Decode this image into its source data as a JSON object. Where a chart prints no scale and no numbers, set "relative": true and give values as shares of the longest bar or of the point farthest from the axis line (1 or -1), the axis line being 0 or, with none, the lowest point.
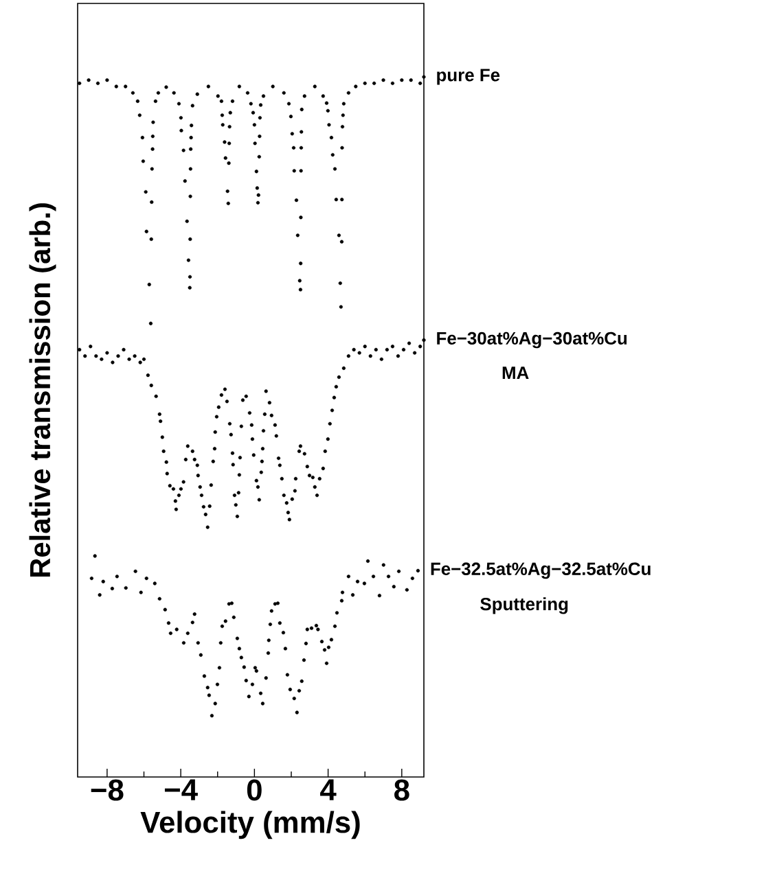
{
  "chart_data": {
    "type": "scatter",
    "relative": true,
    "xlabel": "Velocity  (mm/s)",
    "ylabel": "Relative transmission  (arb.)",
    "xlim": [
      -9.6,
      9.2
    ],
    "xticks": [
      {
        "value": -8,
        "label": "−8"
      },
      {
        "value": -4,
        "label": "−4"
      },
      0,
      4,
      8
    ],
    "annotations": [
      "MA",
      "Sputtering"
    ],
    "series": [
      {
        "name": "pure Fe",
        "color": "#000000",
        "x": [
          -9.5,
          -9.0,
          -8.5,
          -8.0,
          -7.5,
          -7.0,
          -6.6,
          -6.34,
          -6.23,
          -6.08,
          -6.04,
          -5.9,
          -5.86,
          -5.71,
          -5.63,
          -5.6,
          -5.58,
          -5.56,
          -5.53,
          -5.52,
          -5.5,
          -5.37,
          -5.22,
          -4.79,
          -4.37,
          -4.1,
          -3.99,
          -3.97,
          -3.85,
          -3.77,
          -3.66,
          -3.58,
          -3.51,
          -3.5,
          -3.49,
          -3.48,
          -3.47,
          -3.46,
          -3.44,
          -3.42,
          -3.36,
          -3.1,
          -2.5,
          -1.98,
          -1.79,
          -1.75,
          -1.72,
          -1.62,
          -1.57,
          -1.46,
          -1.42,
          -1.39,
          -1.37,
          -1.35,
          -1.31,
          -1.19,
          -0.82,
          -0.37,
          -0.19,
          -0.07,
          0.0,
          0.03,
          0.11,
          0.15,
          0.19,
          0.22,
          0.26,
          0.28,
          0.3,
          0.34,
          0.49,
          1.0,
          1.6,
          1.87,
          1.98,
          2.05,
          2.13,
          2.16,
          2.28,
          2.35,
          2.46,
          2.5,
          2.51,
          2.52,
          2.53,
          2.54,
          2.55,
          2.57,
          2.72,
          3.28,
          3.73,
          3.92,
          3.99,
          4.05,
          4.18,
          4.25,
          4.37,
          4.44,
          4.59,
          4.66,
          4.7,
          4.74,
          4.75,
          4.76,
          4.78,
          4.81,
          4.85,
          5.11,
          5.5,
          6.0,
          6.5,
          7.0,
          7.5,
          8.0,
          8.5,
          9.0,
          9.2
        ],
        "values": [
          0.99,
          0.995,
          0.99,
          0.995,
          0.985,
          0.985,
          0.975,
          0.962,
          0.94,
          0.905,
          0.868,
          0.82,
          0.758,
          0.675,
          0.614,
          0.746,
          0.804,
          0.856,
          0.887,
          0.907,
          0.929,
          0.962,
          0.975,
          0.984,
          0.975,
          0.958,
          0.936,
          0.916,
          0.885,
          0.837,
          0.774,
          0.713,
          0.67,
          0.687,
          0.746,
          0.813,
          0.856,
          0.887,
          0.905,
          0.924,
          0.955,
          0.973,
          0.985,
          0.97,
          0.962,
          0.94,
          0.925,
          0.898,
          0.873,
          0.821,
          0.802,
          0.865,
          0.896,
          0.922,
          0.944,
          0.962,
          0.985,
          0.975,
          0.958,
          0.944,
          0.925,
          0.896,
          0.852,
          0.826,
          0.803,
          0.815,
          0.875,
          0.907,
          0.936,
          0.956,
          0.97,
          0.985,
          0.975,
          0.958,
          0.938,
          0.911,
          0.889,
          0.853,
          0.807,
          0.752,
          0.681,
          0.667,
          0.708,
          0.78,
          0.853,
          0.889,
          0.914,
          0.949,
          0.97,
          0.985,
          0.97,
          0.959,
          0.947,
          0.925,
          0.905,
          0.878,
          0.856,
          0.808,
          0.752,
          0.677,
          0.64,
          0.742,
          0.808,
          0.889,
          0.922,
          0.94,
          0.958,
          0.975,
          0.985,
          0.99,
          0.99,
          0.995,
          0.99,
          0.995,
          0.995,
          0.99,
          1.0
        ]
      },
      {
        "name": "Fe−30at%Ag−30at%Cu",
        "color": "#000000",
        "x": [
          -9.5,
          -9.2,
          -8.9,
          -8.6,
          -8.3,
          -8.0,
          -7.7,
          -7.4,
          -7.1,
          -6.8,
          -6.5,
          -6.2,
          -6.0,
          -5.78,
          -5.6,
          -5.34,
          -5.15,
          -5.1,
          -5.0,
          -4.93,
          -4.78,
          -4.74,
          -4.59,
          -4.4,
          -4.29,
          -4.25,
          -4.1,
          -3.99,
          -3.85,
          -3.73,
          -3.62,
          -3.36,
          -3.25,
          -3.1,
          -3.06,
          -2.95,
          -2.87,
          -2.76,
          -2.65,
          -2.54,
          -2.43,
          -2.35,
          -2.24,
          -2.16,
          -2.13,
          -2.05,
          -1.94,
          -1.79,
          -1.6,
          -1.49,
          -1.34,
          -1.27,
          -1.19,
          -1.16,
          -1.08,
          -1.01,
          -0.93,
          -0.86,
          -0.82,
          -0.78,
          -0.71,
          -0.63,
          -0.45,
          -0.26,
          -0.15,
          -0.11,
          -0.04,
          0.11,
          0.19,
          0.26,
          0.37,
          0.41,
          0.45,
          0.49,
          0.56,
          0.63,
          0.82,
          0.93,
          1.12,
          1.19,
          1.31,
          1.38,
          1.49,
          1.6,
          1.75,
          1.83,
          1.9,
          2.05,
          2.2,
          2.24,
          2.43,
          2.5,
          2.72,
          2.87,
          2.99,
          3.17,
          3.28,
          3.4,
          3.54,
          3.73,
          3.84,
          3.99,
          4.1,
          4.22,
          4.33,
          4.44,
          4.59,
          4.85,
          5.11,
          5.4,
          5.7,
          6.0,
          6.3,
          6.6,
          6.9,
          7.2,
          7.5,
          7.8,
          8.1,
          8.4,
          8.7,
          9.0,
          9.2
        ],
        "values": [
          0.573,
          0.563,
          0.578,
          0.563,
          0.558,
          0.568,
          0.553,
          0.563,
          0.573,
          0.558,
          0.563,
          0.553,
          0.558,
          0.533,
          0.517,
          0.5,
          0.472,
          0.461,
          0.436,
          0.414,
          0.397,
          0.379,
          0.36,
          0.355,
          0.336,
          0.323,
          0.345,
          0.355,
          0.366,
          0.401,
          0.422,
          0.414,
          0.401,
          0.392,
          0.376,
          0.358,
          0.345,
          0.327,
          0.315,
          0.295,
          0.328,
          0.361,
          0.398,
          0.418,
          0.444,
          0.468,
          0.483,
          0.502,
          0.511,
          0.492,
          0.457,
          0.44,
          0.411,
          0.393,
          0.345,
          0.33,
          0.312,
          0.349,
          0.377,
          0.404,
          0.453,
          0.494,
          0.5,
          0.474,
          0.455,
          0.433,
          0.408,
          0.368,
          0.358,
          0.338,
          0.381,
          0.398,
          0.418,
          0.446,
          0.472,
          0.508,
          0.49,
          0.47,
          0.455,
          0.438,
          0.403,
          0.392,
          0.371,
          0.345,
          0.333,
          0.318,
          0.307,
          0.339,
          0.352,
          0.371,
          0.414,
          0.422,
          0.41,
          0.39,
          0.376,
          0.373,
          0.358,
          0.345,
          0.371,
          0.387,
          0.414,
          0.433,
          0.457,
          0.478,
          0.498,
          0.515,
          0.53,
          0.544,
          0.563,
          0.573,
          0.568,
          0.578,
          0.563,
          0.573,
          0.558,
          0.573,
          0.578,
          0.563,
          0.573,
          0.583,
          0.568,
          0.578,
          0.588
        ]
      },
      {
        "name": "Fe−32.5at%Ag−32.5at%Cu",
        "color": "#000000",
        "x": [
          -8.84,
          -8.66,
          -8.4,
          -8.21,
          -7.72,
          -7.46,
          -6.98,
          -6.46,
          -6.16,
          -5.86,
          -5.41,
          -5.15,
          -4.85,
          -4.66,
          -4.55,
          -4.22,
          -3.84,
          -3.62,
          -3.36,
          -3.25,
          -3.06,
          -2.91,
          -2.72,
          -2.54,
          -2.46,
          -2.31,
          -2.13,
          -2.01,
          -1.9,
          -1.83,
          -1.75,
          -1.57,
          -1.38,
          -1.23,
          -1.12,
          -0.93,
          -0.82,
          -0.71,
          -0.56,
          -0.45,
          -0.3,
          -0.11,
          0.04,
          0.11,
          0.34,
          0.45,
          0.63,
          0.75,
          0.78,
          0.86,
          0.93,
          1.12,
          1.27,
          1.38,
          1.57,
          1.68,
          1.79,
          1.94,
          2.16,
          2.31,
          2.43,
          2.57,
          2.69,
          2.8,
          2.87,
          3.1,
          3.36,
          3.45,
          3.66,
          3.81,
          3.92,
          4.03,
          4.18,
          4.37,
          4.48,
          4.74,
          4.78,
          5.11,
          5.34,
          5.6,
          5.97,
          6.16,
          6.46,
          6.79,
          7.01,
          7.28,
          7.57,
          7.84,
          8.28,
          8.58,
          8.88
        ],
        "values": [
          0.215,
          0.25,
          0.189,
          0.21,
          0.199,
          0.218,
          0.2,
          0.226,
          0.193,
          0.215,
          0.207,
          0.183,
          0.166,
          0.145,
          0.129,
          0.135,
          0.114,
          0.129,
          0.146,
          0.159,
          0.114,
          0.095,
          0.062,
          0.044,
          0.032,
          0.0,
          0.019,
          0.049,
          0.075,
          0.114,
          0.14,
          0.148,
          0.175,
          0.176,
          0.154,
          0.121,
          0.105,
          0.091,
          0.076,
          0.055,
          0.03,
          0.049,
          0.075,
          0.07,
          0.035,
          0.019,
          0.059,
          0.098,
          0.118,
          0.143,
          0.164,
          0.175,
          0.176,
          0.145,
          0.13,
          0.105,
          0.064,
          0.041,
          0.027,
          0.005,
          0.039,
          0.054,
          0.087,
          0.113,
          0.135,
          0.137,
          0.141,
          0.135,
          0.116,
          0.103,
          0.082,
          0.107,
          0.119,
          0.14,
          0.161,
          0.18,
          0.193,
          0.218,
          0.189,
          0.21,
          0.207,
          0.242,
          0.218,
          0.188,
          0.236,
          0.218,
          0.202,
          0.226,
          0.197,
          0.215,
          0.227
        ]
      }
    ]
  }
}
